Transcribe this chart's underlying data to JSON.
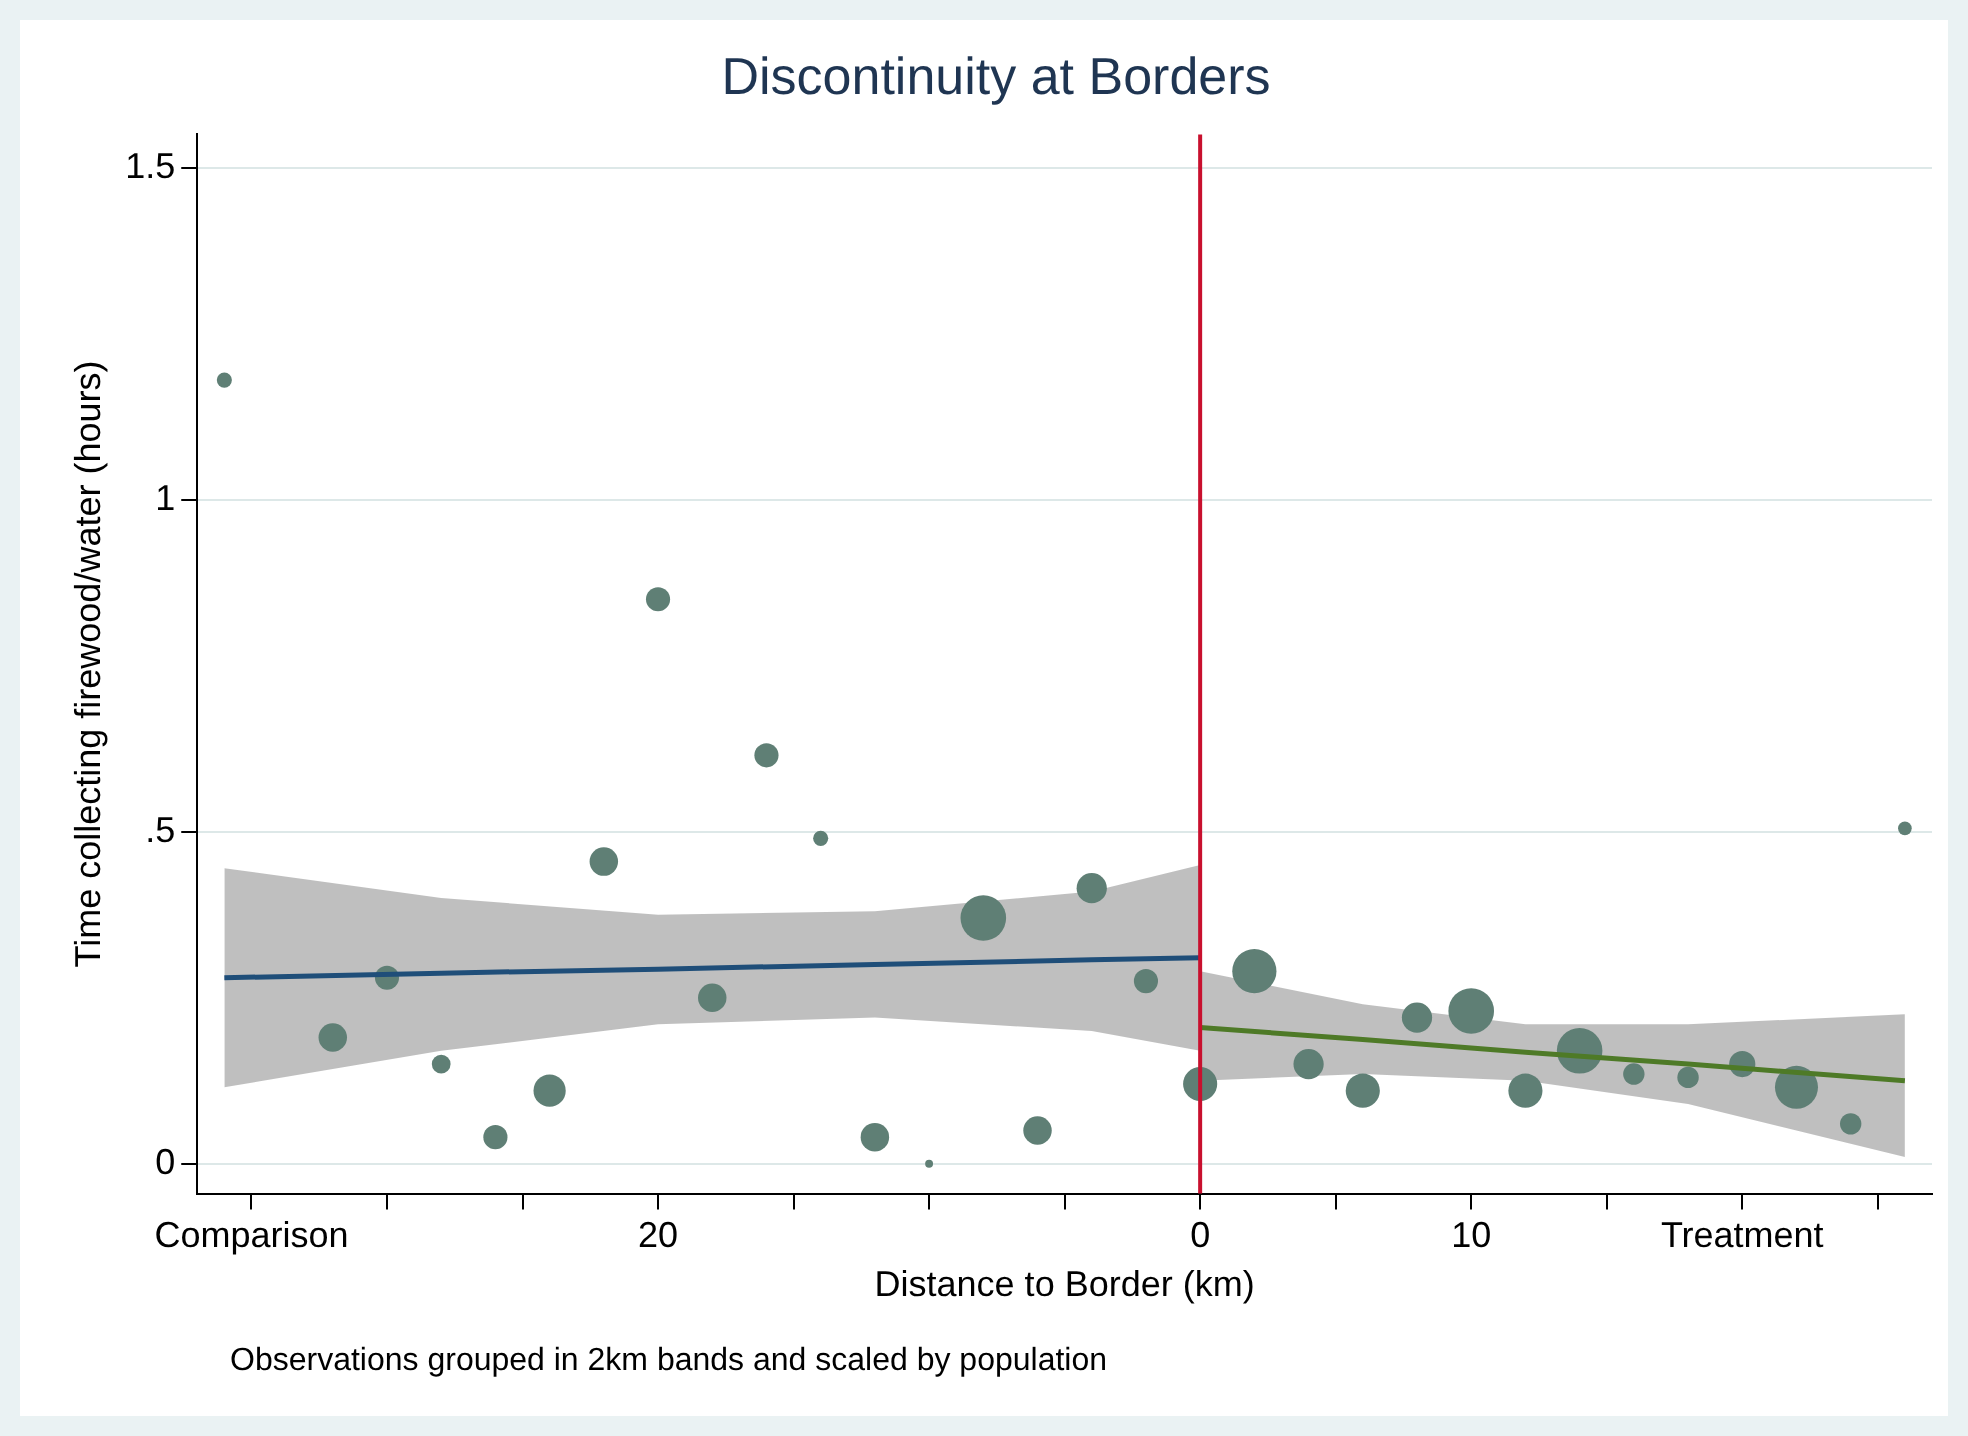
{
  "chart_data": {
    "type": "bubble",
    "title": "Discontinuity at Borders",
    "xlabel": "Distance to Border (km)",
    "ylabel": "Time collecting firewood/water (hours)",
    "annotations": [
      "Observations grouped in 2km bands and scaled by population"
    ],
    "xlim": [
      -37,
      27
    ],
    "ylim": [
      -0.045,
      1.55
    ],
    "xticks": [
      {
        "value": -35,
        "label": "Comparison"
      },
      {
        "value": -30,
        "label": null
      },
      {
        "value": -25,
        "label": null
      },
      {
        "value": -20,
        "label": "20"
      },
      {
        "value": -15,
        "label": null
      },
      {
        "value": -10,
        "label": null
      },
      {
        "value": -5,
        "label": null
      },
      {
        "value": 0,
        "label": "0"
      },
      {
        "value": 5,
        "label": null
      },
      {
        "value": 10,
        "label": "10"
      },
      {
        "value": 15,
        "label": null
      },
      {
        "value": 20,
        "label": "Treatment"
      },
      {
        "value": 25,
        "label": null
      }
    ],
    "yticks": [
      0,
      {
        "value": 0.5,
        "label": ".5"
      },
      1,
      1.5
    ],
    "grid": "y",
    "ref_lines": [
      {
        "axis": "x",
        "value": 0,
        "label": null,
        "color": "#c8102e"
      }
    ],
    "series": [
      {
        "color": "#5f7f75",
        "x": [
          -36,
          -32,
          -30,
          -28,
          -26,
          -24,
          -22,
          -20,
          -18,
          -16,
          -14,
          -12,
          -10,
          -8,
          -6,
          -4,
          -2,
          0,
          2,
          4,
          6,
          8,
          10,
          12,
          14,
          16,
          18,
          20,
          22,
          24,
          26
        ],
        "values": [
          1.18,
          0.19,
          0.28,
          0.15,
          0.04,
          0.11,
          0.455,
          0.85,
          0.25,
          0.615,
          0.49,
          0.04,
          0.0,
          0.37,
          0.05,
          0.415,
          0.275,
          0.12,
          0.29,
          0.15,
          0.11,
          0.22,
          0.23,
          0.11,
          0.17,
          0.135,
          0.13,
          0.15,
          0.115,
          0.06,
          0.505
        ],
        "sizes": [
          0.11,
          0.39,
          0.28,
          0.17,
          0.28,
          0.5,
          0.39,
          0.28,
          0.39,
          0.28,
          0.11,
          0.39,
          0.03,
          1,
          0.39,
          0.44,
          0.28,
          0.56,
          0.94,
          0.44,
          0.56,
          0.44,
          1,
          0.56,
          1,
          0.22,
          0.22,
          0.33,
          0.89,
          0.22,
          0.09
        ]
      },
      {
        "type": "line",
        "color": "#1f4e79",
        "x": [
          -36,
          -28,
          -20,
          -12,
          -4,
          0
        ],
        "values": [
          0.28,
          0.287,
          0.293,
          0.3,
          0.307,
          0.31
        ],
        "lower": [
          0.115,
          0.17,
          0.21,
          0.22,
          0.2,
          0.17
        ],
        "upper": [
          0.445,
          0.4,
          0.375,
          0.38,
          0.41,
          0.45
        ]
      },
      {
        "type": "line",
        "color": "#4e7a27",
        "x": [
          0,
          6,
          12,
          18,
          26
        ],
        "values": [
          0.205,
          0.187,
          0.168,
          0.15,
          0.125
        ],
        "lower": [
          0.125,
          0.135,
          0.125,
          0.09,
          0.01
        ],
        "upper": [
          0.29,
          0.24,
          0.21,
          0.21,
          0.225
        ]
      }
    ]
  }
}
